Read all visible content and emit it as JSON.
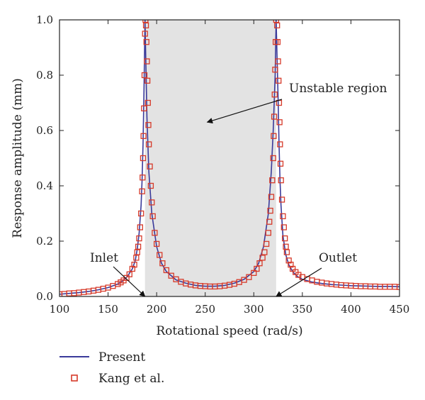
{
  "chart_data": {
    "type": "line",
    "xlabel": "Rotational speed (rad/s)",
    "ylabel": "Response amplitude (mm)",
    "xlim": [
      100,
      450
    ],
    "ylim": [
      0.0,
      1.0
    ],
    "xticks": [
      100,
      150,
      200,
      250,
      300,
      350,
      400,
      450
    ],
    "yticks": [
      0.0,
      0.2,
      0.4,
      0.6,
      0.8,
      1.0
    ],
    "ytick_labels": [
      "0.0",
      "0.2",
      "0.4",
      "0.6",
      "0.8",
      "1.0"
    ],
    "grid": false,
    "legend_position": "bottom-left, below axes",
    "shaded_region": {
      "x_start": 188,
      "x_end": 323,
      "color": "#e3e3e3"
    },
    "colors": {
      "present_line": "#3a3a9a",
      "kang_marker": "#d63a2a"
    },
    "series": [
      {
        "name": "Present",
        "style": "line",
        "x": [
          100,
          110,
          120,
          130,
          140,
          150,
          160,
          165,
          170,
          175,
          178,
          180,
          182,
          184,
          185,
          186,
          187,
          188,
          188,
          190,
          192,
          195,
          200,
          205,
          210,
          220,
          230,
          240,
          250,
          260,
          270,
          280,
          290,
          300,
          305,
          310,
          315,
          318,
          320,
          322,
          323,
          323,
          325,
          326,
          327,
          328,
          330,
          333,
          336,
          340,
          345,
          350,
          360,
          370,
          380,
          390,
          400,
          410,
          420,
          430,
          440,
          450
        ],
        "y": [
          0.008,
          0.011,
          0.014,
          0.018,
          0.024,
          0.032,
          0.045,
          0.056,
          0.073,
          0.1,
          0.13,
          0.17,
          0.23,
          0.33,
          0.42,
          0.55,
          0.75,
          1.0,
          1.0,
          0.65,
          0.45,
          0.3,
          0.18,
          0.12,
          0.09,
          0.06,
          0.048,
          0.04,
          0.037,
          0.037,
          0.04,
          0.048,
          0.062,
          0.09,
          0.12,
          0.18,
          0.3,
          0.45,
          0.6,
          0.8,
          1.0,
          1.0,
          0.72,
          0.55,
          0.42,
          0.33,
          0.22,
          0.15,
          0.115,
          0.09,
          0.072,
          0.062,
          0.052,
          0.047,
          0.043,
          0.041,
          0.039,
          0.038,
          0.037,
          0.036,
          0.036,
          0.035
        ]
      },
      {
        "name": "Kang et al.",
        "style": "square-markers",
        "x": [
          100,
          105,
          110,
          115,
          120,
          125,
          130,
          135,
          140,
          145,
          150,
          155,
          160,
          163,
          166,
          169,
          172,
          175,
          177,
          179,
          180,
          181,
          182,
          183,
          184,
          185,
          185.5,
          186,
          186.5,
          187,
          187.5,
          188,
          188.5,
          189,
          189.5,
          190,
          190.5,
          191,
          191.5,
          192,
          193,
          194,
          195,
          196,
          198,
          200,
          203,
          206,
          210,
          215,
          220,
          225,
          230,
          235,
          240,
          245,
          250,
          255,
          260,
          265,
          270,
          275,
          280,
          285,
          290,
          295,
          300,
          303,
          306,
          309,
          311,
          313,
          315,
          316,
          317,
          318,
          319,
          320,
          320.5,
          321,
          321.5,
          322,
          322.5,
          323,
          324,
          324.5,
          325,
          325.5,
          326,
          326.5,
          327,
          327.5,
          328,
          329,
          330,
          331,
          332,
          333,
          334,
          336,
          338,
          340,
          343,
          346,
          350,
          355,
          360,
          365,
          370,
          375,
          380,
          385,
          390,
          395,
          400,
          405,
          410,
          415,
          420,
          425,
          430,
          435,
          440,
          445,
          450
        ],
        "y": [
          0.008,
          0.009,
          0.011,
          0.012,
          0.014,
          0.016,
          0.018,
          0.021,
          0.024,
          0.028,
          0.032,
          0.038,
          0.045,
          0.051,
          0.058,
          0.067,
          0.08,
          0.1,
          0.115,
          0.14,
          0.16,
          0.18,
          0.21,
          0.25,
          0.3,
          0.38,
          0.43,
          0.5,
          0.58,
          0.68,
          0.8,
          0.95,
          1.0,
          0.98,
          0.92,
          0.85,
          0.78,
          0.7,
          0.62,
          0.55,
          0.47,
          0.4,
          0.34,
          0.29,
          0.23,
          0.19,
          0.15,
          0.12,
          0.095,
          0.075,
          0.062,
          0.053,
          0.047,
          0.043,
          0.04,
          0.038,
          0.037,
          0.036,
          0.036,
          0.037,
          0.039,
          0.042,
          0.046,
          0.052,
          0.06,
          0.07,
          0.085,
          0.1,
          0.12,
          0.14,
          0.16,
          0.19,
          0.23,
          0.27,
          0.31,
          0.36,
          0.42,
          0.5,
          0.58,
          0.65,
          0.73,
          0.82,
          0.92,
          1.0,
          0.98,
          0.92,
          0.85,
          0.78,
          0.7,
          0.63,
          0.55,
          0.48,
          0.42,
          0.35,
          0.29,
          0.25,
          0.21,
          0.18,
          0.16,
          0.13,
          0.115,
          0.1,
          0.088,
          0.078,
          0.07,
          0.063,
          0.058,
          0.053,
          0.05,
          0.047,
          0.045,
          0.043,
          0.041,
          0.04,
          0.039,
          0.038,
          0.037,
          0.037,
          0.036,
          0.036,
          0.035,
          0.035,
          0.035,
          0.035,
          0.034
        ]
      }
    ],
    "annotations": [
      {
        "text": "Unstable region",
        "tip": [
          252,
          0.63
        ]
      },
      {
        "text": "Inlet",
        "tip": [
          188,
          0.0
        ]
      },
      {
        "text": "Outlet",
        "tip": [
          323,
          0.0
        ]
      }
    ]
  }
}
